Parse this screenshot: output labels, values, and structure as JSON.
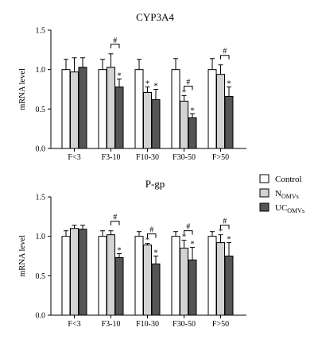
{
  "legend": [
    {
      "label": "Control",
      "sub": "",
      "color": "#ffffff"
    },
    {
      "label": "N",
      "sub": "OMVs",
      "color": "#d3d3d3"
    },
    {
      "label": "UC",
      "sub": "OMVs",
      "color": "#555555"
    }
  ],
  "chart_data": [
    {
      "type": "bar",
      "title": "CYP3A4",
      "ylabel": "mRNA level",
      "ylim": [
        0,
        1.5
      ],
      "yticks": [
        "0.0",
        "0.5",
        "1.0",
        "1.5"
      ],
      "categories": [
        "F<3",
        "F3-10",
        "F10-30",
        "F30-50",
        "F>50"
      ],
      "series": [
        {
          "name": "Control",
          "values": [
            1.0,
            1.0,
            1.0,
            1.0,
            1.0
          ],
          "errors": [
            0.13,
            0.13,
            0.13,
            0.14,
            0.14
          ]
        },
        {
          "name": "NOMVs",
          "values": [
            0.97,
            1.03,
            0.71,
            0.6,
            0.94
          ],
          "errors": [
            0.18,
            0.17,
            0.07,
            0.07,
            0.12
          ]
        },
        {
          "name": "UCOMVs",
          "values": [
            1.03,
            0.78,
            0.62,
            0.39,
            0.66
          ],
          "errors": [
            0.12,
            0.1,
            0.13,
            0.05,
            0.12
          ]
        }
      ],
      "significance": [
        [
          "",
          "",
          ""
        ],
        [
          "",
          "",
          "*"
        ],
        [
          "",
          "*",
          "*"
        ],
        [
          "",
          "*",
          "*"
        ],
        [
          "",
          "",
          "*"
        ]
      ],
      "brackets": [
        {
          "category": 1,
          "symbol": "#"
        },
        {
          "category": 3,
          "symbol": "#"
        },
        {
          "category": 4,
          "symbol": "#"
        }
      ]
    },
    {
      "type": "bar",
      "title": "P-gp",
      "ylabel": "mRNA level",
      "ylim": [
        0,
        1.5
      ],
      "yticks": [
        "0.0",
        "0.5",
        "1.0",
        "1.5"
      ],
      "categories": [
        "F<3",
        "F3-10",
        "F10-30",
        "F30-50",
        "F>50"
      ],
      "series": [
        {
          "name": "Control",
          "values": [
            1.0,
            1.0,
            1.0,
            1.0,
            1.0
          ],
          "errors": [
            0.07,
            0.07,
            0.06,
            0.06,
            0.06
          ]
        },
        {
          "name": "NOMVs",
          "values": [
            1.1,
            1.02,
            0.89,
            0.85,
            0.92
          ],
          "errors": [
            0.04,
            0.05,
            0.02,
            0.1,
            0.1
          ]
        },
        {
          "name": "UCOMVs",
          "values": [
            1.09,
            0.73,
            0.65,
            0.7,
            0.75
          ],
          "errors": [
            0.05,
            0.05,
            0.1,
            0.16,
            0.17
          ]
        }
      ],
      "significance": [
        [
          "",
          "",
          ""
        ],
        [
          "",
          "",
          "*"
        ],
        [
          "",
          "*",
          "*"
        ],
        [
          "",
          "*",
          "*"
        ],
        [
          "",
          "*",
          "*"
        ]
      ],
      "brackets": [
        {
          "category": 1,
          "symbol": "#"
        },
        {
          "category": 2,
          "symbol": "#"
        },
        {
          "category": 3,
          "symbol": "#"
        },
        {
          "category": 4,
          "symbol": "#"
        }
      ]
    }
  ]
}
